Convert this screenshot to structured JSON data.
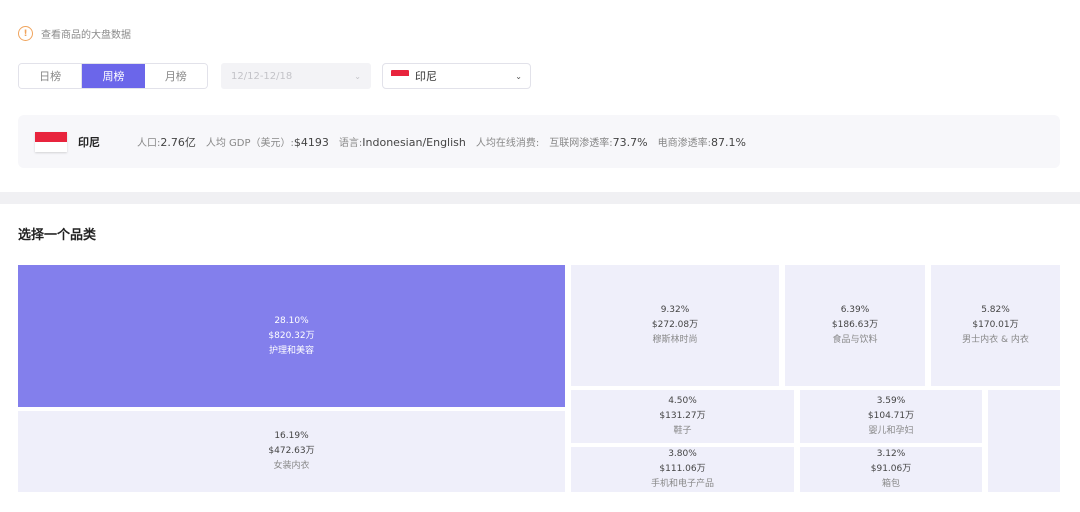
{
  "notice": {
    "icon": "info-icon",
    "text": "查看商品的大盘数据"
  },
  "period_tabs": [
    {
      "label": "日榜",
      "active": false
    },
    {
      "label": "周榜",
      "active": true
    },
    {
      "label": "月榜",
      "active": false
    }
  ],
  "date_select": {
    "value": "12/12-12/18",
    "disabled": true
  },
  "country_select": {
    "value": "印尼",
    "flag": "indonesia-flag"
  },
  "country_info": {
    "name": "印尼",
    "population_label": "人口:",
    "population": "2.76亿",
    "gdp_label": "人均 GDP（美元）:",
    "gdp": "$4193",
    "language_label": "语言:",
    "language": "Indonesian/English",
    "online_spend_label": "人均在线消费:",
    "online_spend": "",
    "internet_label": "互联网渗透率:",
    "internet": "73.7%",
    "ecommerce_label": "电商渗透率:",
    "ecommerce": "87.1%"
  },
  "section_title": "选择一个品类",
  "categories": [
    {
      "name": "护理和美容",
      "share": "28.10%",
      "amount": "$820.32万",
      "selected": true
    },
    {
      "name": "女装内衣",
      "share": "16.19%",
      "amount": "$472.63万",
      "selected": false
    },
    {
      "name": "穆斯林时尚",
      "share": "9.32%",
      "amount": "$272.08万",
      "selected": false
    },
    {
      "name": "食品与饮料",
      "share": "6.39%",
      "amount": "$186.63万",
      "selected": false
    },
    {
      "name": "男士内衣 & 内衣",
      "share": "5.82%",
      "amount": "$170.01万",
      "selected": false
    },
    {
      "name": "鞋子",
      "share": "4.50%",
      "amount": "$131.27万",
      "selected": false
    },
    {
      "name": "婴儿和孕妇",
      "share": "3.59%",
      "amount": "$104.71万",
      "selected": false
    },
    {
      "name": "手机和电子产品",
      "share": "3.80%",
      "amount": "$111.06万",
      "selected": false
    },
    {
      "name": "箱包",
      "share": "3.12%",
      "amount": "$91.06万",
      "selected": false
    }
  ],
  "colors": {
    "accent": "#6b66ea",
    "selected_tile": "#837fec",
    "tile": "#efeffa",
    "notice": "#f0a45d",
    "flag_red": "#e8243d"
  }
}
